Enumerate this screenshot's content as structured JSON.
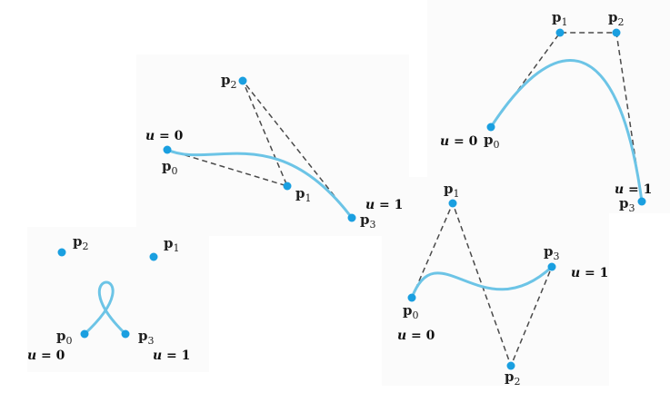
{
  "colors": {
    "curve": "#6cc4e6",
    "control_point": "#1a9fe0",
    "polygon": "#4a4a4a"
  },
  "point_symbol": "p",
  "param_start": {
    "var": "u",
    "text": " = 0"
  },
  "param_end": {
    "var": "u",
    "text": " = 1"
  },
  "panels": [
    {
      "id": "top-middle",
      "points": [
        {
          "sub": "0"
        },
        {
          "sub": "1"
        },
        {
          "sub": "2"
        },
        {
          "sub": "3"
        }
      ],
      "labels": [
        "u = 0",
        "u = 1"
      ]
    },
    {
      "id": "top-right",
      "points": [
        {
          "sub": "0"
        },
        {
          "sub": "1"
        },
        {
          "sub": "2"
        },
        {
          "sub": "3"
        }
      ],
      "labels": [
        "u = 0",
        "u = 1"
      ]
    },
    {
      "id": "bottom-left",
      "points": [
        {
          "sub": "0"
        },
        {
          "sub": "1"
        },
        {
          "sub": "2"
        },
        {
          "sub": "3"
        }
      ],
      "labels": [
        "u = 0",
        "u = 1"
      ]
    },
    {
      "id": "bottom-right",
      "points": [
        {
          "sub": "0"
        },
        {
          "sub": "1"
        },
        {
          "sub": "2"
        },
        {
          "sub": "3"
        }
      ],
      "labels": [
        "u = 0",
        "u = 1"
      ]
    }
  ]
}
